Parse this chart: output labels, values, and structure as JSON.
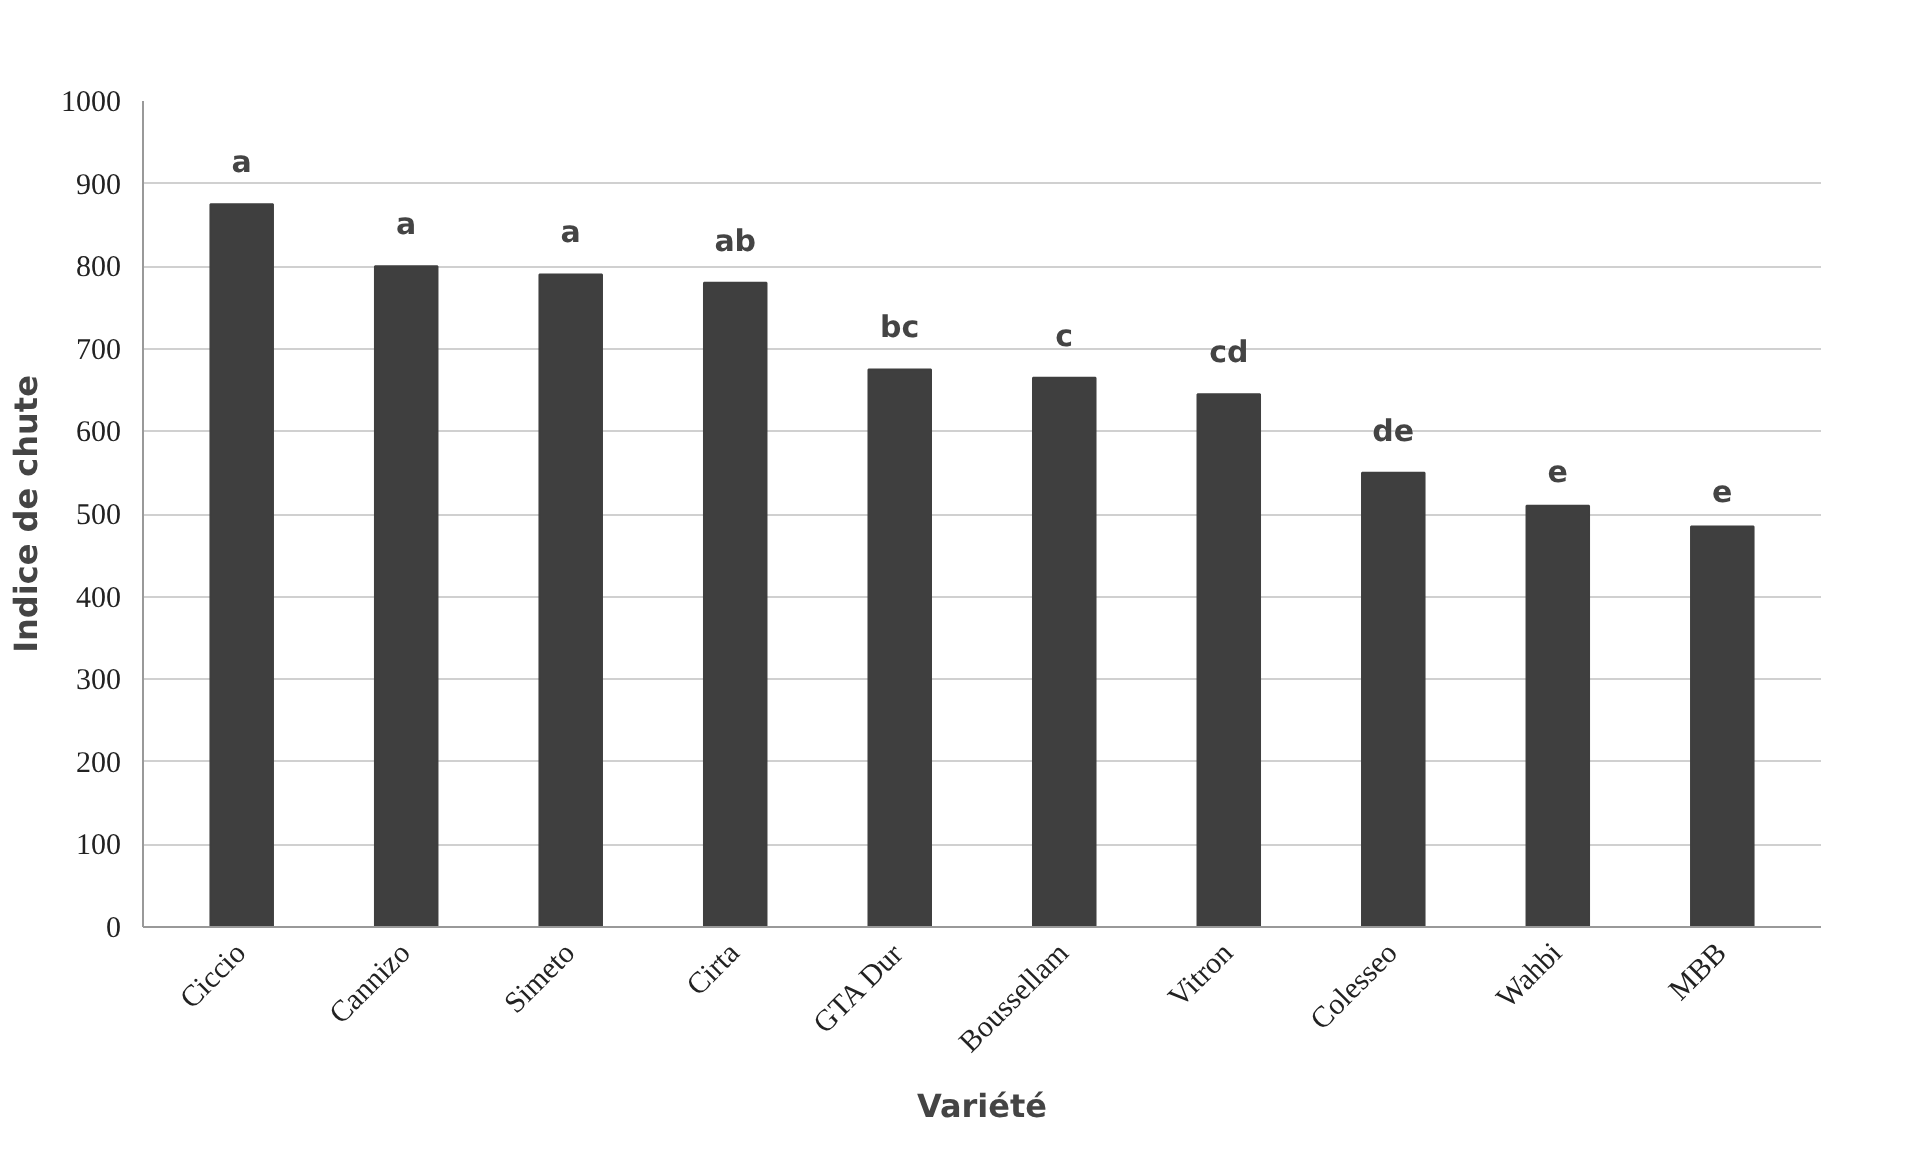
{
  "chart_data": {
    "type": "bar",
    "xlabel": "Variété",
    "ylabel": "Indice de chute",
    "categories": [
      "Ciccio",
      "Cannizo",
      "Simeto",
      "Cirta",
      "GTA Dur",
      "Boussellam",
      "Vitron",
      "Colesseo",
      "Wahbi",
      "MBB"
    ],
    "values": [
      875,
      800,
      790,
      780,
      675,
      665,
      645,
      550,
      510,
      485
    ],
    "color": "#3f3f3f",
    "ylim": [
      0,
      1000
    ],
    "yticks": [
      0,
      100,
      200,
      300,
      400,
      500,
      600,
      700,
      800,
      900,
      1000
    ],
    "grid": "y",
    "annotations": [
      {
        "text": "a",
        "x": "Ciccio",
        "y": 875
      },
      {
        "text": "a",
        "x": "Cannizo",
        "y": 800
      },
      {
        "text": "a",
        "x": "Simeto",
        "y": 790
      },
      {
        "text": "ab",
        "x": "Cirta",
        "y": 780
      },
      {
        "text": "bc",
        "x": "GTA Dur",
        "y": 675
      },
      {
        "text": "c",
        "x": "Boussellam",
        "y": 665
      },
      {
        "text": "cd",
        "x": "Vitron",
        "y": 645
      },
      {
        "text": "de",
        "x": "Colesseo",
        "y": 550
      },
      {
        "text": "e",
        "x": "Wahbi",
        "y": 510
      },
      {
        "text": "e",
        "x": "MBB",
        "y": 485
      }
    ]
  }
}
